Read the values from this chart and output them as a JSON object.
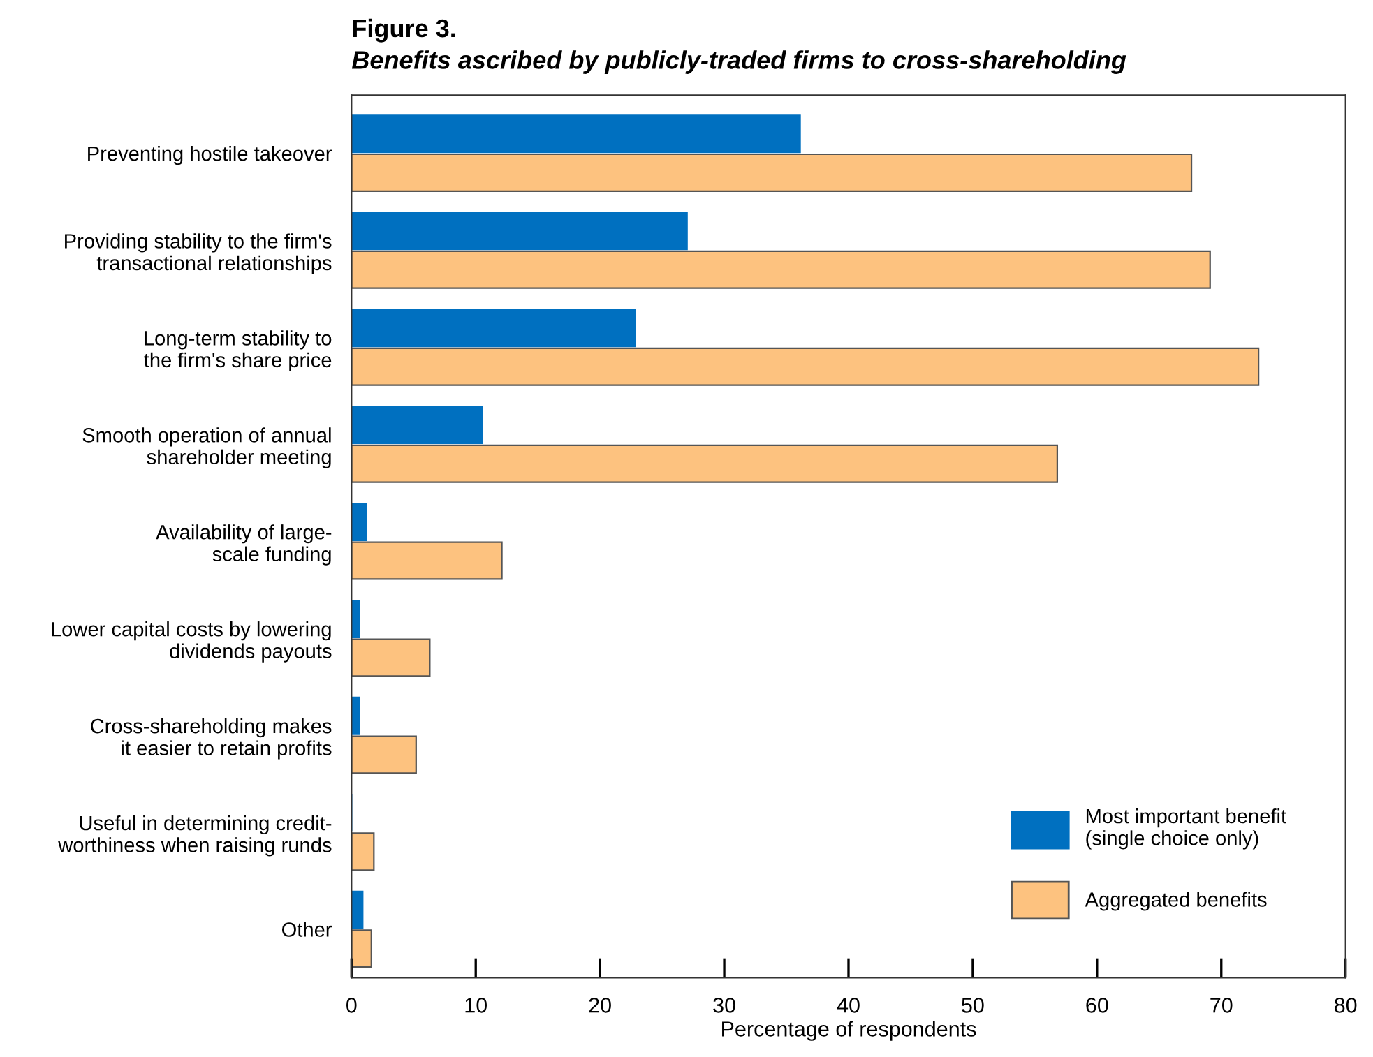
{
  "chart_data": {
    "type": "bar",
    "orientation": "horizontal",
    "title": "Figure 3.",
    "subtitle": "Benefits ascribed by publicly-traded firms to cross-shareholding",
    "xlabel": "Percentage of respondents",
    "categories": [
      "Preventing hostile takeover",
      "Providing stability to the firm's\ntransactional relationships",
      "Long-term stability to\nthe firm's share price",
      "Smooth operation of annual\nshareholder meeting",
      "Availability of large-\nscale funding",
      "Lower capital costs by lowering\ndividends payouts",
      "Cross-shareholding makes\nit easier to retain profits",
      "Useful in determining credit-\nworthiness when raising runds",
      "Other"
    ],
    "series": [
      {
        "name": "Most important benefit\n(single choice only)",
        "color": "#0070c0",
        "values": [
          36.1,
          27.0,
          22.8,
          10.5,
          1.2,
          0.6,
          0.6,
          0,
          0.9
        ]
      },
      {
        "name": "Aggregated benefits",
        "color": "#fdc27f",
        "values": [
          67.6,
          69.1,
          73.0,
          56.8,
          12.1,
          6.3,
          5.2,
          1.8,
          1.6
        ]
      }
    ],
    "xlim": [
      0,
      80
    ],
    "xticks": [
      0,
      10,
      20,
      30,
      40,
      50,
      60,
      70,
      80
    ],
    "grid": false,
    "legend": "bottom right"
  }
}
